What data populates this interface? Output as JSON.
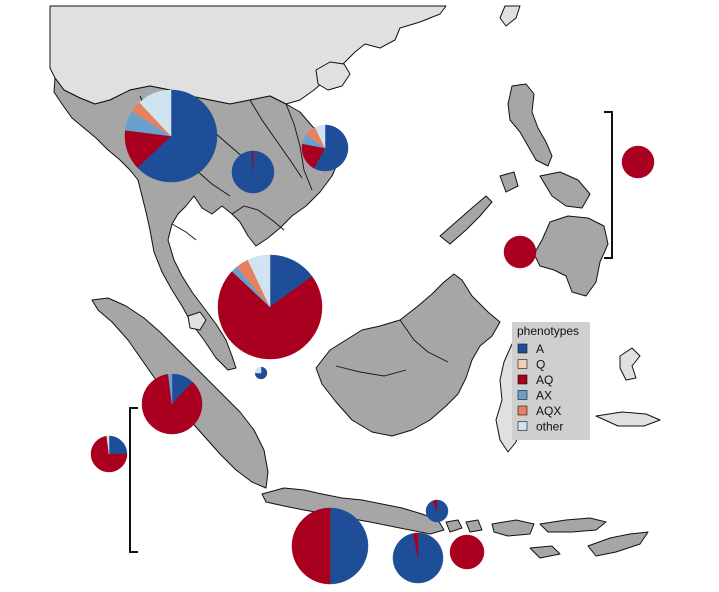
{
  "colors": {
    "land_mainland": "#e0e0e0",
    "land_region": "#a6a6a6",
    "water": "#ffffff",
    "border": "#111111",
    "legend_bg": "#cfcfcf",
    "ocean_line": "#111111"
  },
  "legend": {
    "title": "phenotypes",
    "items": [
      {
        "label": "A",
        "color": "#1f4e99"
      },
      {
        "label": "Q",
        "color": "#f6cdb5"
      },
      {
        "label": "AQ",
        "color": "#a8001e"
      },
      {
        "label": "AX",
        "color": "#6aa0cc"
      },
      {
        "label": "AQX",
        "color": "#e6805f"
      },
      {
        "label": "other",
        "color": "#cfe3f0"
      }
    ]
  },
  "pies": [
    {
      "name": "pie-myanmar",
      "fractions": {
        "A": 0.63,
        "AQ": 0.14,
        "AX": 0.07,
        "AQX": 0.04,
        "other": 0.12
      }
    },
    {
      "name": "pie-thailand-east",
      "fractions": {
        "A": 0.99,
        "AQ": 0.01
      }
    },
    {
      "name": "pie-vietnam",
      "fractions": {
        "A": 0.58,
        "AQ": 0.2,
        "AX": 0.07,
        "AQX": 0.08,
        "other": 0.07
      }
    },
    {
      "name": "pie-philippines-east",
      "fractions": {
        "AQ": 1.0
      }
    },
    {
      "name": "pie-philippines-west",
      "fractions": {
        "AQ": 1.0
      }
    },
    {
      "name": "pie-malay-peninsula",
      "fractions": {
        "A": 0.15,
        "AQ": 0.72,
        "AX": 0.02,
        "AQX": 0.04,
        "other": 0.07
      }
    },
    {
      "name": "pie-singapore",
      "fractions": {
        "A": 0.75,
        "other": 0.25
      }
    },
    {
      "name": "pie-sumatra",
      "fractions": {
        "A": 0.12,
        "AQ": 0.86,
        "AX": 0.02
      }
    },
    {
      "name": "pie-sumatra-west",
      "fractions": {
        "A": 0.25,
        "AQ": 0.73,
        "other": 0.02
      }
    },
    {
      "name": "pie-bali",
      "fractions": {
        "A": 0.94,
        "AQ": 0.06
      }
    },
    {
      "name": "pie-java-west",
      "fractions": {
        "A": 0.5,
        "AQ": 0.5
      }
    },
    {
      "name": "pie-java-east",
      "fractions": {
        "A": 0.97,
        "AQ": 0.03
      }
    },
    {
      "name": "pie-lombok",
      "fractions": {
        "AQ": 1.0
      }
    }
  ]
}
